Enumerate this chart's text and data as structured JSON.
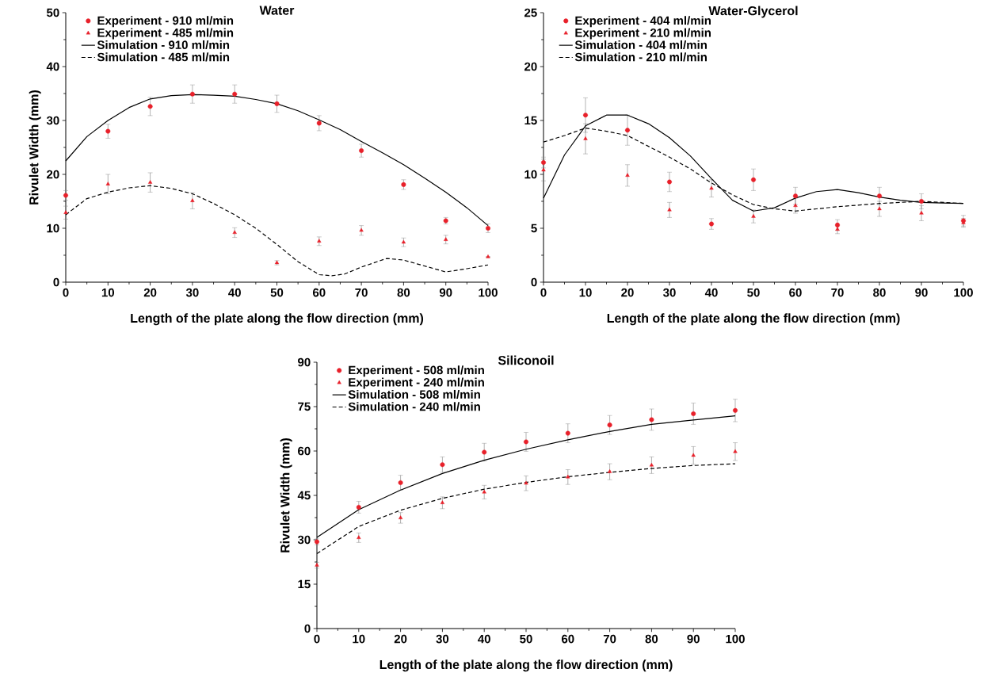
{
  "chart_data": [
    {
      "type": "scatter",
      "title": "Water",
      "xlabel": "Length of the plate along the flow direction (mm)",
      "ylabel": "Rivulet Width (mm)",
      "xlim": [
        0,
        100
      ],
      "ylim": [
        0,
        50
      ],
      "xticks": [
        0,
        10,
        20,
        30,
        40,
        50,
        60,
        70,
        80,
        90,
        100
      ],
      "yticks": [
        0,
        10,
        20,
        30,
        40,
        50
      ],
      "legend": "top left",
      "series": [
        {
          "name": "Experiment - 910 ml/min",
          "marker": "circle",
          "color": "#e8202a",
          "x": [
            0,
            10,
            20,
            30,
            40,
            50,
            60,
            70,
            80,
            90,
            100
          ],
          "values": [
            16.1,
            28,
            32.6,
            34.9,
            34.9,
            33.1,
            29.5,
            24.4,
            18.1,
            11.4,
            10.0
          ],
          "errors": [
            0.9,
            1.3,
            1.7,
            1.7,
            1.7,
            1.6,
            1.4,
            1.2,
            0.9,
            0.6,
            0.8
          ]
        },
        {
          "name": "Experiment - 485 ml/min",
          "marker": "triangle",
          "color": "#e8202a",
          "x": [
            0,
            10,
            20,
            30,
            40,
            50,
            60,
            70,
            80,
            90,
            100
          ],
          "values": [
            12.9,
            18.2,
            18.5,
            15.1,
            9.2,
            3.6,
            7.6,
            9.6,
            7.4,
            7.9,
            4.7
          ],
          "errors": [
            1.2,
            1.8,
            1.8,
            1.5,
            0.9,
            0.4,
            0.8,
            0.9,
            0.8,
            0.8,
            null
          ]
        },
        {
          "name": "Simulation - 910 ml/min",
          "type": "line",
          "line_style": "solid",
          "color": "#000000",
          "x": [
            0,
            5,
            10,
            15,
            20,
            25,
            30,
            35,
            40,
            45,
            50,
            55,
            60,
            65,
            70,
            75,
            80,
            85,
            90,
            95,
            100
          ],
          "values": [
            22.5,
            27,
            30,
            32.4,
            34,
            34.6,
            34.8,
            34.7,
            34.5,
            33.9,
            33.1,
            31.8,
            30.1,
            28.3,
            26.1,
            24,
            21.8,
            19.3,
            16.7,
            13.8,
            10.5
          ]
        },
        {
          "name": "Simulation - 485 ml/min",
          "type": "line",
          "line_style": "dashed",
          "color": "#000000",
          "x": [
            0,
            5,
            10,
            15,
            20,
            25,
            30,
            35,
            40,
            45,
            50,
            55,
            60,
            63,
            66,
            70,
            76,
            80,
            85,
            90,
            95,
            100
          ],
          "values": [
            12.5,
            15.5,
            16.7,
            17.5,
            17.9,
            17.4,
            16.4,
            14.6,
            12.5,
            10,
            7,
            3.8,
            1.4,
            1.2,
            1.5,
            2.8,
            4.4,
            4.1,
            3,
            1.9,
            2.5,
            3.2
          ]
        }
      ]
    },
    {
      "type": "scatter",
      "title": "Water-Glycerol",
      "xlabel": "Length of the plate along the flow direction (mm)",
      "xlim": [
        0,
        100
      ],
      "ylim": [
        0,
        25
      ],
      "xticks": [
        0,
        10,
        20,
        30,
        40,
        50,
        60,
        70,
        80,
        90,
        100
      ],
      "yticks": [
        0,
        5,
        10,
        15,
        20,
        25
      ],
      "legend": "top left",
      "series": [
        {
          "name": "Experiment - 404 ml/min",
          "marker": "circle",
          "color": "#e8202a",
          "x": [
            0,
            10,
            20,
            30,
            40,
            50,
            60,
            70,
            80,
            90,
            100
          ],
          "values": [
            11.1,
            15.5,
            14.1,
            9.3,
            5.4,
            9.5,
            8.0,
            5.3,
            8.0,
            7.5,
            5.7
          ],
          "errors": [
            0.5,
            1.6,
            1.4,
            0.9,
            0.5,
            1.0,
            0.8,
            0.5,
            0.8,
            0.7,
            0.5
          ]
        },
        {
          "name": "Experiment - 210 ml/min",
          "marker": "triangle",
          "color": "#e8202a",
          "x": [
            0,
            10,
            20,
            30,
            40,
            50,
            60,
            70,
            80,
            90,
            100
          ],
          "values": [
            10.4,
            13.3,
            9.9,
            6.7,
            8.7,
            6.1,
            7.1,
            4.9,
            6.8,
            6.4,
            5.5
          ],
          "errors": [
            1.0,
            1.4,
            1.0,
            0.7,
            0.8,
            0.6,
            0.7,
            0.4,
            0.7,
            0.7,
            0.4
          ]
        },
        {
          "name": "Simulation - 404 ml/min",
          "type": "line",
          "line_style": "solid",
          "color": "#000000",
          "x": [
            0,
            5,
            10,
            15,
            20,
            25,
            30,
            35,
            40,
            45,
            50,
            55,
            60,
            65,
            70,
            75,
            80,
            85,
            90,
            95,
            100
          ],
          "values": [
            7.8,
            11.8,
            14.5,
            15.5,
            15.5,
            14.7,
            13.4,
            11.7,
            9.6,
            7.6,
            6.6,
            6.9,
            7.8,
            8.4,
            8.6,
            8.3,
            7.9,
            7.6,
            7.4,
            7.35,
            7.3
          ]
        },
        {
          "name": "Simulation - 210 ml/min",
          "type": "line",
          "line_style": "dashed",
          "color": "#000000",
          "x": [
            0,
            5,
            10,
            15,
            20,
            25,
            30,
            35,
            40,
            45,
            50,
            55,
            60,
            65,
            70,
            80,
            90,
            100
          ],
          "values": [
            13,
            13.6,
            14.3,
            14.0,
            13.6,
            12.6,
            11.6,
            10.5,
            9.2,
            8.1,
            7.2,
            6.8,
            6.6,
            6.8,
            7.0,
            7.3,
            7.5,
            7.3
          ]
        }
      ]
    },
    {
      "type": "scatter",
      "title": "Siliconoil",
      "xlabel": "Length of the plate along the flow direction (mm)",
      "ylabel": "Rivulet Width (mm)",
      "xlim": [
        0,
        100
      ],
      "ylim": [
        0,
        90
      ],
      "xticks": [
        0,
        10,
        20,
        30,
        40,
        50,
        60,
        70,
        80,
        90,
        100
      ],
      "yticks": [
        0,
        15,
        30,
        45,
        60,
        75,
        90
      ],
      "legend": "top left",
      "series": [
        {
          "name": "Experiment - 508 ml/min",
          "marker": "circle",
          "color": "#e8202a",
          "x": [
            0,
            10,
            20,
            30,
            40,
            50,
            60,
            70,
            80,
            90,
            100
          ],
          "values": [
            29.3,
            41,
            49.3,
            55.4,
            59.6,
            63.1,
            66,
            68.8,
            70.6,
            72.6,
            73.7
          ],
          "errors": [
            1,
            2,
            2.5,
            2.6,
            3,
            3.2,
            3.2,
            3.2,
            3.6,
            3.6,
            3.8
          ]
        },
        {
          "name": "Experiment - 240 ml/min",
          "marker": "triangle",
          "color": "#e8202a",
          "x": [
            0,
            10,
            20,
            30,
            40,
            50,
            60,
            70,
            80,
            90,
            100
          ],
          "values": [
            21.4,
            30.7,
            37.4,
            42.5,
            46.1,
            49.1,
            51.2,
            53,
            55.2,
            58.5,
            59.8
          ],
          "errors": [
            1,
            1.6,
            1.8,
            2,
            2.3,
            2.5,
            2.5,
            2.7,
            2.8,
            3,
            3
          ]
        },
        {
          "name": "Simulation - 508 ml/min",
          "type": "line",
          "line_style": "solid",
          "color": "#000000",
          "x": [
            0,
            5,
            10,
            20,
            30,
            40,
            50,
            60,
            70,
            80,
            90,
            100
          ],
          "values": [
            30.8,
            35.5,
            40.2,
            46.8,
            52.4,
            56.9,
            60.6,
            63.8,
            66.6,
            69,
            70.5,
            71.9
          ]
        },
        {
          "name": "Simulation - 240 ml/min",
          "type": "line",
          "line_style": "dashed",
          "color": "#000000",
          "x": [
            0,
            10,
            20,
            30,
            40,
            50,
            60,
            70,
            80,
            90,
            100
          ],
          "values": [
            25.3,
            34.5,
            40,
            44,
            47.1,
            49.4,
            51.3,
            52.8,
            54.1,
            55.1,
            55.7
          ]
        }
      ]
    }
  ]
}
